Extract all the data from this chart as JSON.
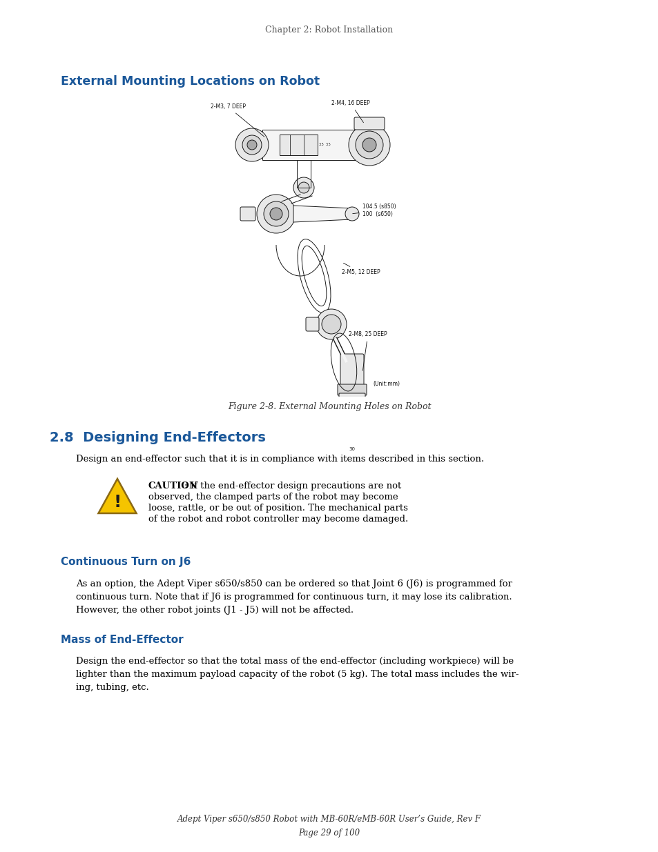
{
  "page_header": "Chapter 2: Robot Installation",
  "section_title": "External Mounting Locations on Robot",
  "section_title_color": "#1A5799",
  "figure_caption": "Figure 2-8. External Mounting Holes on Robot",
  "section2_title": "2.8  Designing End-Effectors",
  "section2_title_color": "#1A5799",
  "section2_body": "Design an end-effector such that it is in compliance with items described in this section.",
  "caution_bold": "CAUTION",
  "caution_rest": ": If the end-effector design precautions are not\nobserved, the clamped parts of the robot may become\nloose, rattle, or be out of position. The mechanical parts\nof the robot and robot controller may become damaged.",
  "subsection1_title": "Continuous Turn on J6",
  "subsection1_title_color": "#1A5799",
  "subsection1_body": "As an option, the Adept Viper s650/s850 can be ordered so that Joint 6 (J6) is programmed for\ncontinuous turn. Note that if J6 is programmed for continuous turn, it may lose its calibration.\nHowever, the other robot joints (J1 - J5) will not be affected.",
  "subsection2_title": "Mass of End-Effector",
  "subsection2_title_color": "#1A5799",
  "subsection2_body": "Design the end-effector so that the total mass of the end-effector (including workpiece) will be\nlighter than the maximum payload capacity of the robot (5 kg). The total mass includes the wir-\ning, tubing, etc.",
  "footer_line1": "Adept Viper s650/s850 Robot with MB-60R/eMB-60R User’s Guide, Rev F",
  "footer_line2": "Page 29 of 100",
  "bg_color": "#ffffff",
  "body_text_color": "#000000",
  "header_color": "#555555"
}
